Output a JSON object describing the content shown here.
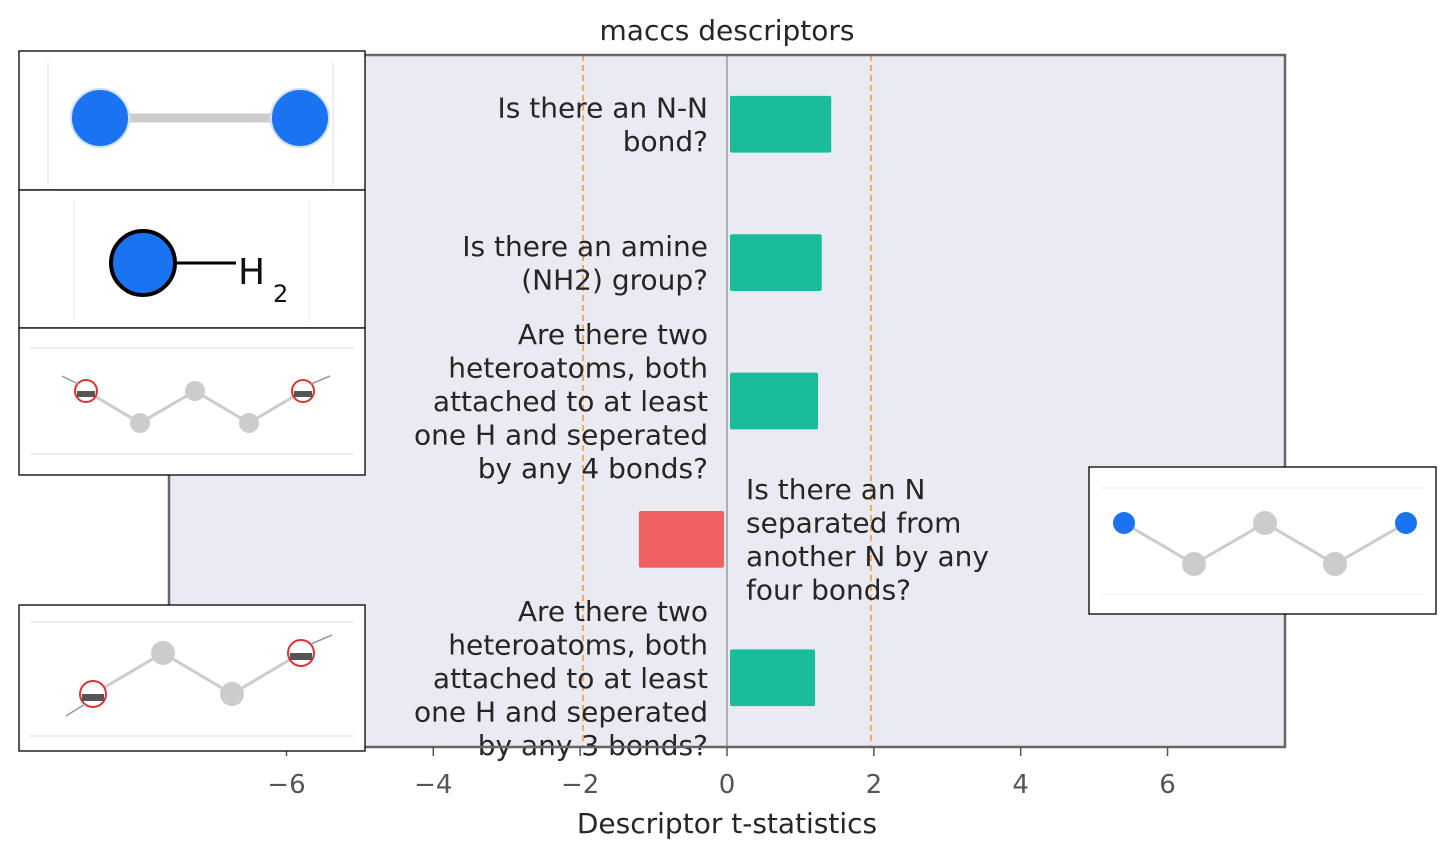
{
  "chart_data": {
    "type": "bar",
    "orientation": "horizontal",
    "title": "maccs descriptors",
    "xlabel": "Descriptor t-statistics",
    "ylabel": "",
    "xlim": [
      -7.6,
      7.6
    ],
    "xticks": [
      -6,
      -4,
      -2,
      0,
      2,
      4,
      6
    ],
    "xtick_labels": [
      "−6",
      "−4",
      "−2",
      "0",
      "2",
      "4",
      "6"
    ],
    "threshold_lines": [
      -1.96,
      1.96
    ],
    "bars": [
      {
        "label_lines": [
          "Is there an N-N",
          "bond?"
        ],
        "value": 1.42
      },
      {
        "label_lines": [
          "Is there an amine",
          "(NH2) group?"
        ],
        "value": 1.29
      },
      {
        "label_lines": [
          "Are there two",
          "heteroatoms, both",
          "attached to at least",
          "one H and seperated",
          "by any 4 bonds?"
        ],
        "value": 1.24
      },
      {
        "label_lines": [
          "Is there an N",
          "separated from",
          "another N by any",
          "four bonds?"
        ],
        "value": -1.2
      },
      {
        "label_lines": [
          "Are there two",
          "heteroatoms, both",
          "attached to at least",
          "one H and seperated",
          "by any 3 bonds?"
        ],
        "value": 1.2
      }
    ],
    "colors": {
      "positive": "#1ABC9C",
      "negative": "#F06060",
      "plot_background": "#EAEAF2",
      "threshold": "#F5A54A",
      "zero_line": "#888888",
      "frame": "#666666"
    },
    "molecule_images": [
      {
        "icon": "n-n-bond-molecule",
        "subscript": "2",
        "atom_label": "H"
      },
      {
        "icon": "amine-nh2-molecule",
        "atom_label": "H",
        "subscript": "2"
      },
      {
        "icon": "heteroatoms-4-bonds-molecule"
      },
      {
        "icon": "n-n-4-bonds-molecule"
      },
      {
        "icon": "heteroatoms-3-bonds-molecule"
      }
    ]
  }
}
